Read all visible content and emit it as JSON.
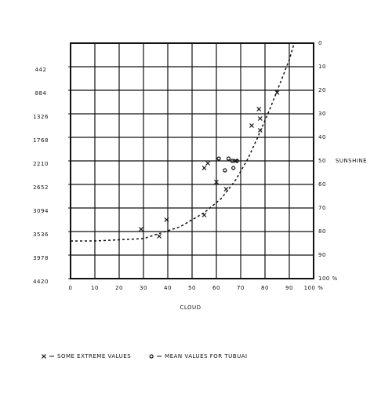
{
  "chart_data": {
    "type": "scatter",
    "xlabel": "CLOUD",
    "ylabel": "SUNSHINE",
    "xlim": [
      0,
      100
    ],
    "xticks": [
      0,
      10,
      20,
      30,
      40,
      50,
      60,
      70,
      80,
      90,
      {
        "value": 100,
        "label": "100 %"
      }
    ],
    "ylim": [
      100,
      0
    ],
    "yticks": [
      0,
      10,
      20,
      30,
      40,
      50,
      60,
      70,
      80,
      90,
      {
        "value": 100,
        "label": "100 %"
      }
    ],
    "y2lim": [
      4420,
      0
    ],
    "y2ticks": [
      442,
      884,
      1326,
      1768,
      2210,
      2652,
      3094,
      3536,
      3978,
      4420
    ],
    "grid": true,
    "series": [
      {
        "name": "SOME EXTREME VALUES",
        "marker": "x",
        "color": "#111111",
        "x": [
          29,
          36.5,
          39.5,
          55,
          55,
          56.5,
          60,
          64,
          68,
          74.5,
          77.5,
          78,
          78,
          85
        ],
        "values": [
          79,
          82,
          75,
          73,
          53,
          51,
          59,
          62,
          50,
          35,
          28,
          32,
          37,
          21
        ]
      },
      {
        "name": "MEAN VALUES FOR TUBUAI",
        "marker": "o",
        "color": "#111111",
        "x": [
          61,
          63.5,
          65,
          66.5,
          67,
          68.5
        ],
        "values": [
          49,
          54,
          49,
          50,
          53,
          50
        ]
      },
      {
        "type": "line",
        "dashed": true,
        "color": "#111111",
        "x": [
          0,
          10,
          20,
          30,
          36,
          45,
          55,
          62,
          68,
          73,
          77,
          82,
          87,
          90,
          92
        ],
        "values": [
          84,
          84,
          83.5,
          83,
          81,
          78,
          72,
          66,
          58,
          49,
          40,
          28,
          15,
          7,
          0
        ]
      }
    ]
  }
}
